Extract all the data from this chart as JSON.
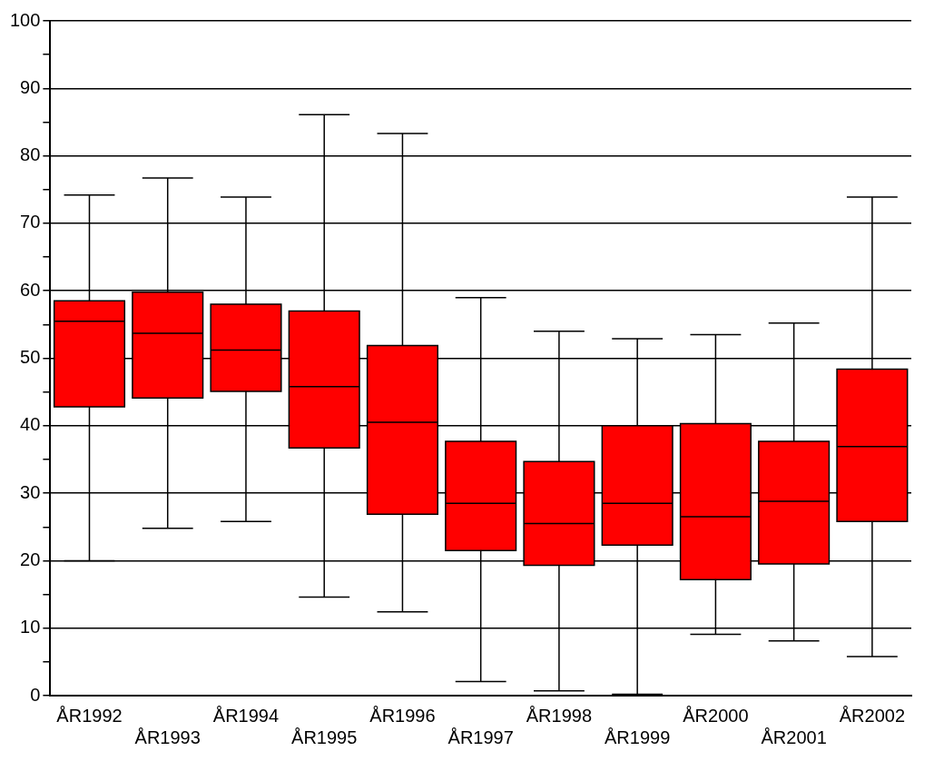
{
  "chart_data": {
    "type": "box",
    "categories": [
      "ÅR1992",
      "ÅR1993",
      "ÅR1994",
      "ÅR1995",
      "ÅR1996",
      "ÅR1997",
      "ÅR1998",
      "ÅR1999",
      "ÅR2000",
      "ÅR2001",
      "ÅR2002"
    ],
    "color": "#ff0000",
    "boxes": [
      {
        "low": 20.0,
        "q1": 42.8,
        "median": 55.5,
        "q3": 58.5,
        "high": 74.2
      },
      {
        "low": 24.8,
        "q1": 44.1,
        "median": 53.7,
        "q3": 59.8,
        "high": 76.7
      },
      {
        "low": 25.8,
        "q1": 45.1,
        "median": 51.2,
        "q3": 58.0,
        "high": 73.9
      },
      {
        "low": 14.6,
        "q1": 36.7,
        "median": 45.8,
        "q3": 57.0,
        "high": 86.1
      },
      {
        "low": 12.4,
        "q1": 26.9,
        "median": 40.5,
        "q3": 51.9,
        "high": 83.3
      },
      {
        "low": 2.1,
        "q1": 21.5,
        "median": 28.5,
        "q3": 37.7,
        "high": 59.0
      },
      {
        "low": 0.7,
        "q1": 19.3,
        "median": 25.5,
        "q3": 34.7,
        "high": 54.0
      },
      {
        "low": 0.2,
        "q1": 22.3,
        "median": 28.5,
        "q3": 40.0,
        "high": 52.9
      },
      {
        "low": 9.1,
        "q1": 17.2,
        "median": 26.5,
        "q3": 40.3,
        "high": 53.5
      },
      {
        "low": 8.1,
        "q1": 19.5,
        "median": 28.8,
        "q3": 37.7,
        "high": 55.2
      },
      {
        "low": 5.8,
        "q1": 25.8,
        "median": 36.9,
        "q3": 48.4,
        "high": 73.9
      }
    ],
    "ylim": [
      0,
      100
    ],
    "yticks": [
      0,
      {
        "value": 5,
        "label": null
      },
      10,
      {
        "value": 15,
        "label": null
      },
      20,
      {
        "value": 25,
        "label": null
      },
      30,
      {
        "value": 35,
        "label": null
      },
      40,
      {
        "value": 45,
        "label": null
      },
      50,
      {
        "value": 55,
        "label": null
      },
      60,
      {
        "value": 65,
        "label": null
      },
      70,
      {
        "value": 75,
        "label": null
      },
      80,
      {
        "value": 85,
        "label": null
      },
      90,
      {
        "value": 95,
        "label": null
      },
      100
    ],
    "grid": "y",
    "legend": false
  }
}
